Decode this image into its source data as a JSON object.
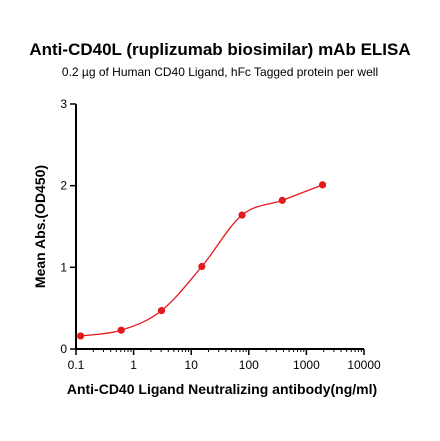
{
  "chart_data": {
    "type": "scatter",
    "title": "Anti-CD40L (ruplizumab biosimilar) mAb ELISA",
    "subtitle": "0.2 µg of Human CD40 Ligand, hFc Tagged protein per well",
    "xlabel": "Anti-CD40 Ligand Neutralizing antibody(ng/ml)",
    "ylabel": "Mean Abs.(OD450)",
    "x_scale": "log",
    "xlim": [
      0.1,
      10000
    ],
    "ylim": [
      0,
      3
    ],
    "x_ticks": [
      "0.1",
      "1",
      "10",
      "100",
      "1000",
      "10000"
    ],
    "y_ticks": [
      "0",
      "1",
      "2",
      "3"
    ],
    "grid": false,
    "legend": "none",
    "colors": {
      "series": "#e31a1c",
      "axis": "#000000"
    },
    "series": [
      {
        "x": [
          0.12,
          0.61,
          3.05,
          15.3,
          76.3,
          381,
          1907
        ],
        "y": [
          0.16,
          0.23,
          0.47,
          1.01,
          1.64,
          1.82,
          2.01
        ]
      }
    ]
  }
}
